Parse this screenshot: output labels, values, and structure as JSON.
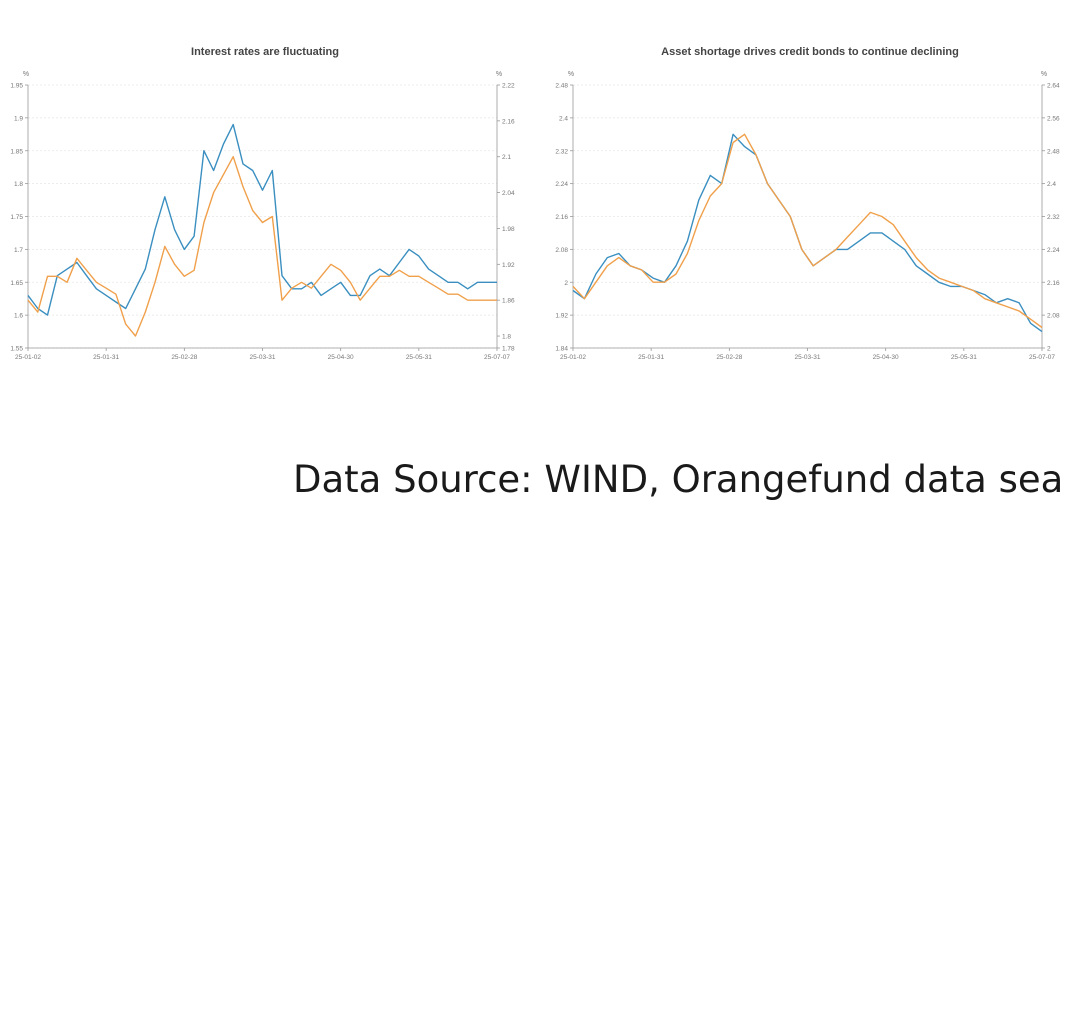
{
  "source_note": "Data Source: WIND, Orangefund data sea",
  "chart_data": [
    {
      "type": "line",
      "title": "Interest rates are fluctuating",
      "left_unit": "%",
      "right_unit": "%",
      "x_ticks": [
        "25-01-02",
        "25-01-31",
        "25-02-28",
        "25-03-31",
        "25-04-30",
        "25-05-31",
        "25-07-07"
      ],
      "ylim_left": [
        1.55,
        1.95
      ],
      "yticks_left": [
        1.55,
        1.6,
        1.65,
        1.7,
        1.75,
        1.8,
        1.85,
        1.9,
        1.95
      ],
      "ylim_right": [
        1.78,
        2.22
      ],
      "yticks_right": [
        1.78,
        1.8,
        1.86,
        1.92,
        1.98,
        2.04,
        2.1,
        2.16,
        2.22
      ],
      "grid": true,
      "series": [
        {
          "axis": "left",
          "color": "#3a8fc0",
          "values": [
            1.63,
            1.61,
            1.6,
            1.66,
            1.67,
            1.68,
            1.66,
            1.64,
            1.63,
            1.62,
            1.61,
            1.64,
            1.67,
            1.73,
            1.78,
            1.73,
            1.7,
            1.72,
            1.85,
            1.82,
            1.86,
            1.89,
            1.83,
            1.82,
            1.79,
            1.82,
            1.66,
            1.64,
            1.64,
            1.65,
            1.63,
            1.64,
            1.65,
            1.63,
            1.63,
            1.66,
            1.67,
            1.66,
            1.68,
            1.7,
            1.69,
            1.67,
            1.66,
            1.65,
            1.65,
            1.64,
            1.65,
            1.65,
            1.65
          ]
        },
        {
          "axis": "right",
          "color": "#f0a04b",
          "values": [
            1.86,
            1.84,
            1.9,
            1.9,
            1.89,
            1.93,
            1.91,
            1.89,
            1.88,
            1.87,
            1.82,
            1.8,
            1.84,
            1.89,
            1.95,
            1.92,
            1.9,
            1.91,
            1.99,
            2.04,
            2.07,
            2.1,
            2.05,
            2.01,
            1.99,
            2.0,
            1.86,
            1.88,
            1.89,
            1.88,
            1.9,
            1.92,
            1.91,
            1.89,
            1.86,
            1.88,
            1.9,
            1.9,
            1.91,
            1.9,
            1.9,
            1.89,
            1.88,
            1.87,
            1.87,
            1.86,
            1.86,
            1.86,
            1.86
          ]
        }
      ]
    },
    {
      "type": "line",
      "title": "Asset shortage drives credit bonds to continue declining",
      "left_unit": "%",
      "right_unit": "%",
      "x_ticks": [
        "25-01-02",
        "25-01-31",
        "25-02-28",
        "25-03-31",
        "25-04-30",
        "25-05-31",
        "25-07-07"
      ],
      "ylim_left": [
        1.84,
        2.48
      ],
      "yticks_left": [
        1.84,
        1.92,
        2,
        2.08,
        2.16,
        2.24,
        2.32,
        2.4,
        2.48
      ],
      "ylim_right": [
        2,
        2.64
      ],
      "yticks_right": [
        2,
        2.08,
        2.16,
        2.24,
        2.32,
        2.4,
        2.48,
        2.56,
        2.64
      ],
      "grid": true,
      "series": [
        {
          "axis": "left",
          "color": "#3a8fc0",
          "values": [
            1.98,
            1.96,
            2.02,
            2.06,
            2.07,
            2.04,
            2.03,
            2.01,
            2.0,
            2.04,
            2.1,
            2.2,
            2.26,
            2.24,
            2.36,
            2.33,
            2.31,
            2.24,
            2.2,
            2.16,
            2.08,
            2.04,
            2.06,
            2.08,
            2.08,
            2.1,
            2.12,
            2.12,
            2.1,
            2.08,
            2.04,
            2.02,
            2.0,
            1.99,
            1.99,
            1.98,
            1.97,
            1.95,
            1.96,
            1.95,
            1.9,
            1.88
          ]
        },
        {
          "axis": "right",
          "color": "#f0a04b",
          "values": [
            2.15,
            2.12,
            2.16,
            2.2,
            2.22,
            2.2,
            2.19,
            2.16,
            2.16,
            2.18,
            2.23,
            2.31,
            2.37,
            2.4,
            2.5,
            2.52,
            2.47,
            2.4,
            2.36,
            2.32,
            2.24,
            2.2,
            2.22,
            2.24,
            2.27,
            2.3,
            2.33,
            2.32,
            2.3,
            2.26,
            2.22,
            2.19,
            2.17,
            2.16,
            2.15,
            2.14,
            2.12,
            2.11,
            2.1,
            2.09,
            2.07,
            2.05
          ]
        }
      ]
    }
  ]
}
